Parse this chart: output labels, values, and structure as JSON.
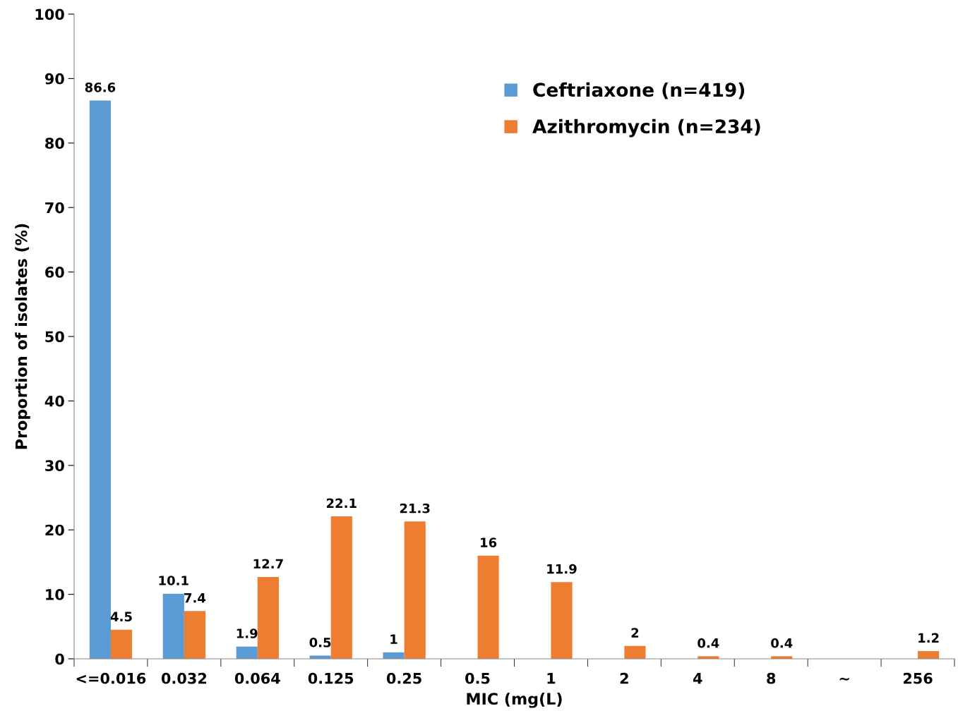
{
  "chart_data": {
    "type": "bar",
    "xlabel": "MIC (mg(L)",
    "ylabel": "Proportion of isolates (%)",
    "categories": [
      "<=0.016",
      "0.032",
      "0.064",
      "0.125",
      "0.25",
      "0.5",
      "1",
      "2",
      "4",
      "8",
      "~",
      "256"
    ],
    "series": [
      {
        "name": "Ceftriaxone (n=419)",
        "color": "#5b9bd5",
        "values": [
          86.6,
          10.1,
          1.9,
          0.5,
          1,
          null,
          null,
          null,
          null,
          null,
          null,
          null
        ]
      },
      {
        "name": "Azithromycin (n=234)",
        "color": "#ed7d31",
        "values": [
          4.5,
          7.4,
          12.7,
          22.1,
          21.3,
          16,
          11.9,
          2,
          0.4,
          0.4,
          null,
          1.2
        ]
      }
    ],
    "ylim": [
      0,
      100
    ],
    "yticks": [
      0,
      10,
      20,
      30,
      40,
      50,
      60,
      70,
      80,
      90,
      100
    ],
    "data_labels": true,
    "grid": false,
    "legend": "top right"
  }
}
